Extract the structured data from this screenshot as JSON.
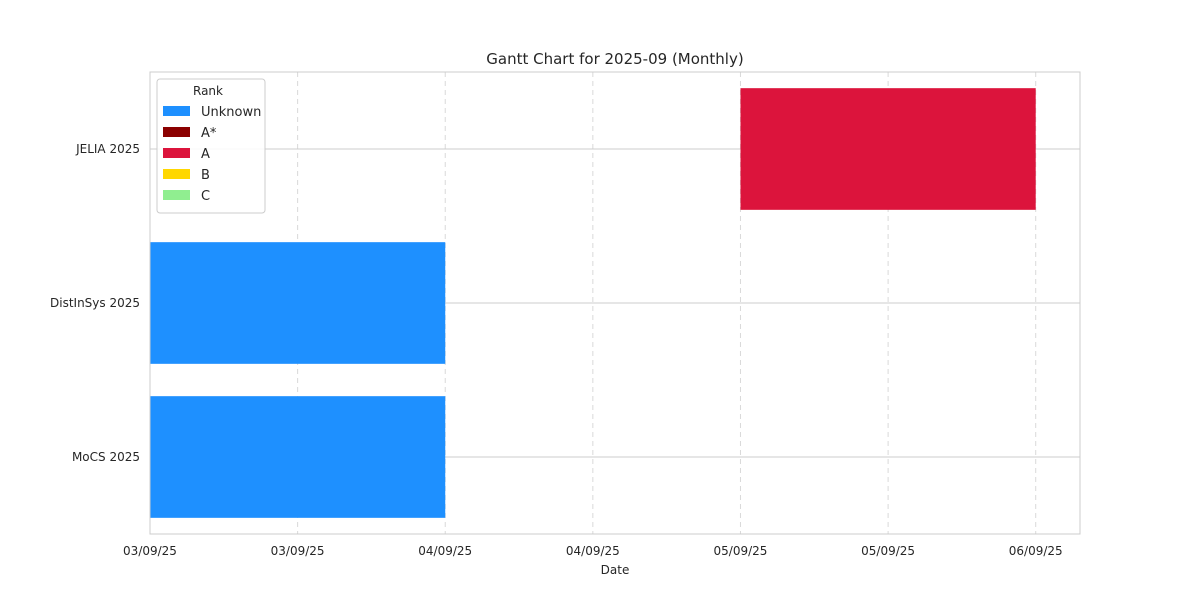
{
  "chart_data": {
    "type": "gantt",
    "title": "Gantt Chart for 2025-09 (Monthly)",
    "xlabel": "Date",
    "ylabel": "",
    "grid": true,
    "x_domain_days": [
      3.0,
      6.15
    ],
    "x_ticks": [
      {
        "day": 3.0,
        "label": "03/09/25"
      },
      {
        "day": 3.5,
        "label": "03/09/25"
      },
      {
        "day": 4.0,
        "label": "04/09/25"
      },
      {
        "day": 4.5,
        "label": "04/09/25"
      },
      {
        "day": 5.0,
        "label": "05/09/25"
      },
      {
        "day": 5.5,
        "label": "05/09/25"
      },
      {
        "day": 6.0,
        "label": "06/09/25"
      }
    ],
    "categories": [
      "JELIA 2025",
      "DistInSys 2025",
      "MoCS 2025"
    ],
    "tasks": [
      {
        "name": "JELIA 2025",
        "start_day": 5.0,
        "end_day": 6.0,
        "rank": "A"
      },
      {
        "name": "DistInSys 2025",
        "start_day": 3.0,
        "end_day": 4.0,
        "rank": "Unknown"
      },
      {
        "name": "MoCS 2025",
        "start_day": 3.0,
        "end_day": 4.0,
        "rank": "Unknown"
      }
    ],
    "legend": {
      "title": "Rank",
      "placement": "top-left",
      "entries": [
        {
          "label": "Unknown",
          "color": "#1e90ff"
        },
        {
          "label": "A*",
          "color": "#8b0000"
        },
        {
          "label": "A",
          "color": "#dc143c"
        },
        {
          "label": "B",
          "color": "#ffd700"
        },
        {
          "label": "C",
          "color": "#90ee90"
        }
      ]
    }
  }
}
